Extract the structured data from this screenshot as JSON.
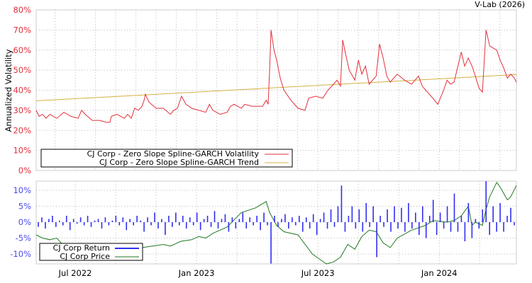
{
  "credit": "V-Lab (2026)",
  "colors": {
    "volatility": "#e3303c",
    "trend": "#d4b040",
    "returns": "#2f2ff0",
    "price": "#227722",
    "vol_ticks": "#e3303c",
    "ret_ticks": "#4b4bf0"
  },
  "chart_data": [
    {
      "type": "line",
      "ylabel": "Annualized Volatility",
      "ylim": [
        0,
        80
      ],
      "yticks": [
        "0%",
        "10%",
        "20%",
        "30%",
        "40%",
        "50%",
        "60%",
        "70%",
        "80%"
      ],
      "xlim": [
        2022.339,
        2024.318
      ],
      "grid": true,
      "legend_position": "bottom-left",
      "series": [
        {
          "name": "CJ Corp - Zero Slope Spline-GARCH Volatility",
          "points": [
            [
              2022.339,
              30
            ],
            [
              2022.351,
              27
            ],
            [
              2022.365,
              28
            ],
            [
              2022.38,
              26
            ],
            [
              2022.395,
              28
            ],
            [
              2022.424,
              26
            ],
            [
              2022.453,
              29
            ],
            [
              2022.482,
              27
            ],
            [
              2022.512,
              26
            ],
            [
              2022.526,
              30
            ],
            [
              2022.541,
              28
            ],
            [
              2022.57,
              25
            ],
            [
              2022.599,
              25
            ],
            [
              2022.629,
              24
            ],
            [
              2022.643,
              24
            ],
            [
              2022.649,
              27
            ],
            [
              2022.672,
              28
            ],
            [
              2022.702,
              26
            ],
            [
              2022.716,
              28
            ],
            [
              2022.731,
              26
            ],
            [
              2022.745,
              31
            ],
            [
              2022.76,
              30
            ],
            [
              2022.775,
              32
            ],
            [
              2022.784,
              35
            ],
            [
              2022.789,
              38
            ],
            [
              2022.804,
              34
            ],
            [
              2022.833,
              31
            ],
            [
              2022.863,
              31
            ],
            [
              2022.892,
              28
            ],
            [
              2022.906,
              30
            ],
            [
              2022.921,
              31
            ],
            [
              2022.938,
              37
            ],
            [
              2022.956,
              33
            ],
            [
              2022.98,
              31
            ],
            [
              2023.009,
              30
            ],
            [
              2023.038,
              29
            ],
            [
              2023.053,
              33
            ],
            [
              2023.067,
              30
            ],
            [
              2023.097,
              28
            ],
            [
              2023.126,
              29
            ],
            [
              2023.14,
              32
            ],
            [
              2023.155,
              33
            ],
            [
              2023.184,
              31
            ],
            [
              2023.199,
              33
            ],
            [
              2023.228,
              32
            ],
            [
              2023.272,
              32
            ],
            [
              2023.287,
              35
            ],
            [
              2023.295,
              33
            ],
            [
              2023.301,
              50
            ],
            [
              2023.307,
              70
            ],
            [
              2023.319,
              60
            ],
            [
              2023.33,
              55
            ],
            [
              2023.345,
              46
            ],
            [
              2023.36,
              40
            ],
            [
              2023.389,
              35
            ],
            [
              2023.418,
              31
            ],
            [
              2023.447,
              30
            ],
            [
              2023.462,
              36
            ],
            [
              2023.491,
              37
            ],
            [
              2023.52,
              36
            ],
            [
              2023.541,
              40
            ],
            [
              2023.564,
              43
            ],
            [
              2023.579,
              45
            ],
            [
              2023.593,
              42
            ],
            [
              2023.602,
              65
            ],
            [
              2023.614,
              58
            ],
            [
              2023.629,
              50
            ],
            [
              2023.652,
              45
            ],
            [
              2023.667,
              55
            ],
            [
              2023.681,
              48
            ],
            [
              2023.696,
              52
            ],
            [
              2023.711,
              43
            ],
            [
              2023.74,
              47
            ],
            [
              2023.754,
              63
            ],
            [
              2023.769,
              56
            ],
            [
              2023.784,
              47
            ],
            [
              2023.798,
              44
            ],
            [
              2023.827,
              48
            ],
            [
              2023.857,
              45
            ],
            [
              2023.871,
              44
            ],
            [
              2023.886,
              43
            ],
            [
              2023.915,
              47
            ],
            [
              2023.93,
              42
            ],
            [
              2023.944,
              40
            ],
            [
              2023.974,
              36
            ],
            [
              2023.994,
              33
            ],
            [
              2024.018,
              40
            ],
            [
              2024.032,
              45
            ],
            [
              2024.047,
              43
            ],
            [
              2024.061,
              44
            ],
            [
              2024.091,
              59
            ],
            [
              2024.105,
              52
            ],
            [
              2024.12,
              56
            ],
            [
              2024.135,
              52
            ],
            [
              2024.149,
              47
            ],
            [
              2024.164,
              41
            ],
            [
              2024.178,
              39
            ],
            [
              2024.193,
              70
            ],
            [
              2024.208,
              62
            ],
            [
              2024.237,
              60
            ],
            [
              2024.251,
              55
            ],
            [
              2024.266,
              51
            ],
            [
              2024.281,
              46
            ],
            [
              2024.295,
              48
            ],
            [
              2024.31,
              46
            ],
            [
              2024.318,
              44
            ]
          ]
        },
        {
          "name": "CJ Corp - Zero Slope Spline-GARCH Trend",
          "points": [
            [
              2022.339,
              34.7
            ],
            [
              2024.318,
              47.8
            ]
          ]
        }
      ]
    },
    {
      "type": "bar",
      "ylim": [
        -13,
        13
      ],
      "yticks": [
        {
          "v": 10,
          "label": "10%"
        },
        {
          "v": 5,
          "label": "5%"
        },
        {
          "v": 0,
          "label": "0%"
        },
        {
          "v": -5,
          "label": "-5%"
        },
        {
          "v": -10,
          "label": "-10%"
        }
      ],
      "xlim": [
        2022.339,
        2024.318
      ],
      "xticks": [
        {
          "v": 2022.5,
          "label": "Jul 2022"
        },
        {
          "v": 2023.0,
          "label": "Jan 2023"
        },
        {
          "v": 2023.5,
          "label": "Jul 2023"
        },
        {
          "v": 2024.0,
          "label": "Jan 2024"
        }
      ],
      "grid": true,
      "legend_position": "bottom-left",
      "series": [
        {
          "name": "CJ Corp Return",
          "values": [
            -1.5,
            1.5,
            -2,
            1,
            2,
            -1.5,
            0.5,
            -1,
            2,
            -2.5,
            1,
            -0.5,
            1.5,
            -1,
            2,
            -1.5,
            0.5,
            1,
            -2,
            1.5,
            -1,
            0.5,
            2,
            -1,
            1.5,
            -2.5,
            1,
            -1,
            2,
            0.5,
            -3,
            1.5,
            -1,
            3,
            -2,
            1,
            -4,
            2,
            -1.5,
            3,
            -1,
            2,
            -2,
            1.5,
            -1,
            3,
            -2.5,
            1,
            2,
            -1.5,
            3.5,
            -2,
            1,
            2.5,
            -3,
            1.5,
            -2,
            1,
            3,
            -2,
            1.5,
            -1,
            2,
            -2.5,
            3,
            -1,
            -13,
            2,
            -1.5,
            1,
            2.5,
            -2,
            1.5,
            -1,
            2,
            -3,
            1.5,
            -2,
            2.5,
            -4,
            1,
            3,
            -2,
            4,
            -1.5,
            5,
            11.5,
            -3,
            2,
            5,
            -2,
            4,
            -3,
            6,
            -1.5,
            5,
            -11,
            2,
            -1.5,
            4,
            -3,
            5,
            -2,
            4.5,
            -3,
            6,
            -2,
            3,
            -4,
            5,
            -5,
            2,
            7,
            -4,
            3,
            -2,
            5,
            -3,
            9,
            -3,
            2,
            -6,
            6,
            -5,
            1,
            -2,
            4,
            13,
            -4,
            5,
            -3,
            6,
            -3,
            2,
            4.5,
            -1
          ]
        },
        {
          "name": "CJ Corp Price",
          "points": [
            [
              2022.339,
              -4
            ],
            [
              2022.365,
              -5
            ],
            [
              2022.395,
              -5.5
            ],
            [
              2022.424,
              -5
            ],
            [
              2022.453,
              -7.5
            ],
            [
              2022.482,
              -7
            ],
            [
              2022.512,
              -7.5
            ],
            [
              2022.599,
              -8
            ],
            [
              2022.658,
              -10
            ],
            [
              2022.716,
              -9
            ],
            [
              2022.775,
              -8
            ],
            [
              2022.863,
              -7
            ],
            [
              2022.892,
              -7.5
            ],
            [
              2022.936,
              -6
            ],
            [
              2022.98,
              -5.5
            ],
            [
              2023.009,
              -4.5
            ],
            [
              2023.038,
              -5
            ],
            [
              2023.067,
              -3.5
            ],
            [
              2023.126,
              -1.5
            ],
            [
              2023.184,
              3
            ],
            [
              2023.243,
              4.5
            ],
            [
              2023.287,
              6.5
            ],
            [
              2023.301,
              3
            ],
            [
              2023.33,
              -1
            ],
            [
              2023.36,
              -3
            ],
            [
              2023.418,
              -4
            ],
            [
              2023.477,
              -10
            ],
            [
              2023.535,
              -13.5
            ],
            [
              2023.564,
              -12.5
            ],
            [
              2023.593,
              -11
            ],
            [
              2023.623,
              -7
            ],
            [
              2023.652,
              -8.5
            ],
            [
              2023.681,
              -4.5
            ],
            [
              2023.711,
              -2.5
            ],
            [
              2023.74,
              -3
            ],
            [
              2023.769,
              -6.5
            ],
            [
              2023.798,
              -8
            ],
            [
              2023.827,
              -5
            ],
            [
              2023.886,
              -2.5
            ],
            [
              2023.944,
              -1
            ],
            [
              2023.974,
              0.5
            ],
            [
              2024.032,
              0
            ],
            [
              2024.061,
              0.5
            ],
            [
              2024.091,
              2
            ],
            [
              2024.12,
              5
            ],
            [
              2024.135,
              -1
            ],
            [
              2024.149,
              0
            ],
            [
              2024.178,
              -1
            ],
            [
              2024.193,
              4
            ],
            [
              2024.208,
              8
            ],
            [
              2024.237,
              12.5
            ],
            [
              2024.251,
              11
            ],
            [
              2024.281,
              7
            ],
            [
              2024.295,
              8
            ],
            [
              2024.318,
              11.5
            ]
          ]
        }
      ]
    }
  ]
}
